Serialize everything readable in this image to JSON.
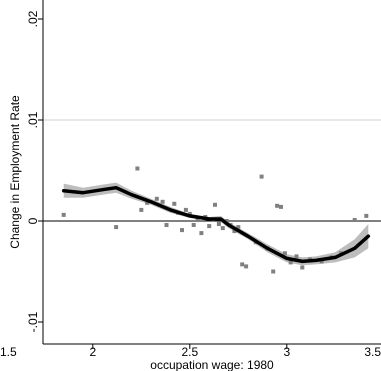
{
  "chart_data": {
    "type": "scatter",
    "xlabel": "occupation wage: 1980",
    "ylabel": "Change in Employment Rate",
    "xlim": [
      1.8,
      3.5
    ],
    "ylim": [
      -0.0115,
      0.0205
    ],
    "x_ticks": [
      {
        "value": 1.5,
        "label": "1.5"
      },
      {
        "value": 2.0,
        "label": "2"
      },
      {
        "value": 2.5,
        "label": "2.5"
      },
      {
        "value": 3.0,
        "label": "3"
      },
      {
        "value": 3.5,
        "label": "3.5"
      }
    ],
    "y_ticks": [
      {
        "value": -0.01,
        "label": "-.01"
      },
      {
        "value": 0.0,
        "label": "0"
      },
      {
        "value": 0.01,
        "label": ".01"
      },
      {
        "value": 0.02,
        "label": ".02"
      }
    ],
    "gridlines_y": [
      0.01
    ],
    "reference_line_y": 0,
    "grid": true,
    "legend": "none",
    "colors": {
      "scatter": "#808080",
      "smooth_line": "#000000",
      "confidence_band": "#bdbdbd",
      "gridline": "#d0d0d0"
    },
    "scatter_points": [
      {
        "x": 1.85,
        "y": 0.0006
      },
      {
        "x": 2.12,
        "y": -0.0006
      },
      {
        "x": 2.23,
        "y": 0.0052
      },
      {
        "x": 2.25,
        "y": 0.0011
      },
      {
        "x": 2.28,
        "y": 0.0018
      },
      {
        "x": 2.33,
        "y": 0.0022
      },
      {
        "x": 2.36,
        "y": 0.0019
      },
      {
        "x": 2.38,
        "y": -0.0004
      },
      {
        "x": 2.42,
        "y": 0.0017
      },
      {
        "x": 2.44,
        "y": 0.0008
      },
      {
        "x": 2.46,
        "y": -0.0009
      },
      {
        "x": 2.48,
        "y": 0.0011
      },
      {
        "x": 2.5,
        "y": 0.0007
      },
      {
        "x": 2.52,
        "y": -0.0004
      },
      {
        "x": 2.54,
        "y": 0.0002
      },
      {
        "x": 2.56,
        "y": -0.0012
      },
      {
        "x": 2.58,
        "y": 0.0004
      },
      {
        "x": 2.6,
        "y": -0.0005
      },
      {
        "x": 2.62,
        "y": 0.0001
      },
      {
        "x": 2.63,
        "y": 0.0016
      },
      {
        "x": 2.65,
        "y": -0.0003
      },
      {
        "x": 2.67,
        "y": -0.0007
      },
      {
        "x": 2.69,
        "y": 0.0
      },
      {
        "x": 2.71,
        "y": -0.0004
      },
      {
        "x": 2.73,
        "y": -0.001
      },
      {
        "x": 2.75,
        "y": -0.0006
      },
      {
        "x": 2.77,
        "y": -0.0043
      },
      {
        "x": 2.79,
        "y": -0.0045
      },
      {
        "x": 2.84,
        "y": -0.0021
      },
      {
        "x": 2.87,
        "y": 0.0044
      },
      {
        "x": 2.9,
        "y": -0.0027
      },
      {
        "x": 2.93,
        "y": -0.005
      },
      {
        "x": 2.95,
        "y": 0.0015
      },
      {
        "x": 2.97,
        "y": 0.0014
      },
      {
        "x": 2.99,
        "y": -0.0032
      },
      {
        "x": 3.02,
        "y": -0.0041
      },
      {
        "x": 3.05,
        "y": -0.0035
      },
      {
        "x": 3.08,
        "y": -0.0046
      },
      {
        "x": 3.12,
        "y": -0.0038
      },
      {
        "x": 3.18,
        "y": -0.004
      },
      {
        "x": 3.23,
        "y": -0.0036
      },
      {
        "x": 3.28,
        "y": -0.0032
      },
      {
        "x": 3.35,
        "y": 0.0001
      },
      {
        "x": 3.41,
        "y": 0.0005
      }
    ],
    "smooth_line": {
      "x": [
        1.85,
        1.95,
        2.05,
        2.12,
        2.2,
        2.3,
        2.4,
        2.5,
        2.6,
        2.66,
        2.7,
        2.8,
        2.9,
        3.0,
        3.08,
        3.15,
        3.25,
        3.35,
        3.42
      ],
      "y": [
        0.003,
        0.0028,
        0.0031,
        0.0033,
        0.0026,
        0.0019,
        0.0011,
        0.0005,
        0.0002,
        0.0002,
        -0.0004,
        -0.0015,
        -0.0027,
        -0.0037,
        -0.004,
        -0.0039,
        -0.0036,
        -0.0027,
        -0.0015
      ],
      "lower": [
        0.0023,
        0.0023,
        0.0026,
        0.0028,
        0.0022,
        0.0016,
        0.0008,
        0.0003,
        0.0,
        -0.0001,
        -0.0007,
        -0.0018,
        -0.0031,
        -0.0041,
        -0.0044,
        -0.0043,
        -0.0041,
        -0.0036,
        -0.0027
      ],
      "upper": [
        0.0037,
        0.0033,
        0.0036,
        0.0038,
        0.003,
        0.0022,
        0.0014,
        0.0007,
        0.0004,
        0.0005,
        -0.0001,
        -0.0012,
        -0.0023,
        -0.0033,
        -0.0036,
        -0.0035,
        -0.0031,
        -0.0018,
        -0.0003
      ]
    }
  }
}
